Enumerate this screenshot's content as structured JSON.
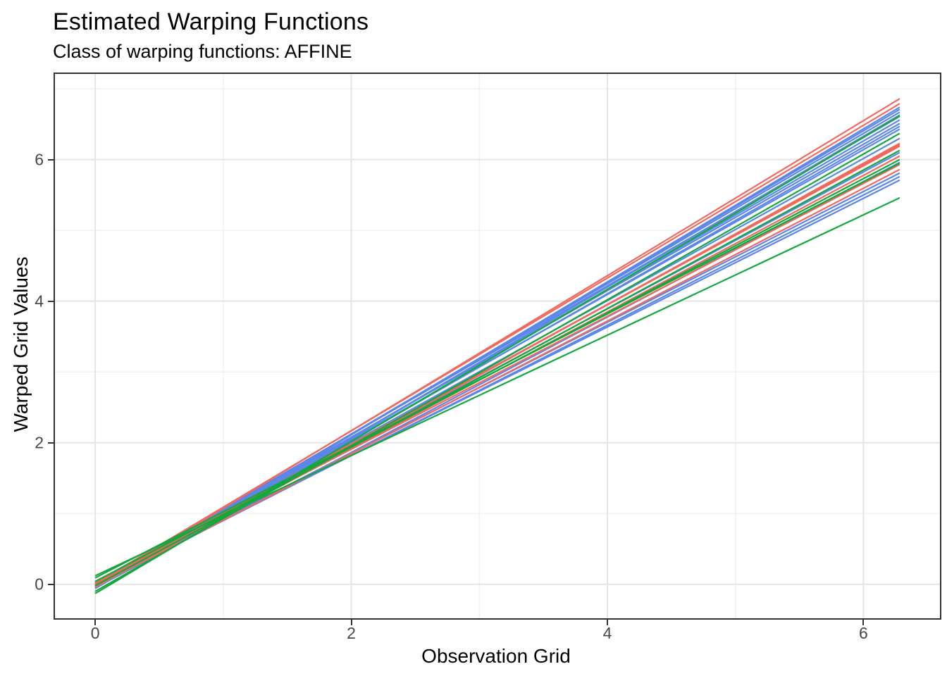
{
  "title": "Estimated Warping Functions",
  "subtitle": "Class of warping functions: AFFINE",
  "chart_data": {
    "type": "line",
    "title": "Estimated Warping Functions",
    "subtitle": "Class of warping functions: AFFINE",
    "xlabel": "Observation Grid",
    "ylabel": "Warped Grid Values",
    "legend": "none",
    "grid": "major+minor",
    "x_domain": [
      0,
      6.2832
    ],
    "xlim": [
      -0.3142,
      6.5974
    ],
    "ylim": [
      -0.48,
      7.21
    ],
    "x_ticks": [
      0,
      2,
      4,
      6
    ],
    "y_ticks": [
      0,
      2,
      4,
      6
    ],
    "x_minor_ticks": [
      1,
      3,
      5
    ],
    "y_minor_ticks": [
      1,
      3,
      5,
      7
    ],
    "colors": {
      "red": "#F2685E",
      "green": "#14A83C",
      "blue": "#5B87E9"
    },
    "line_width": 2.2,
    "series": [
      {
        "color": "blue",
        "y0": -0.05,
        "y1": 6.74
      },
      {
        "color": "blue",
        "y0": -0.02,
        "y1": 6.71
      },
      {
        "color": "blue",
        "y0": 0.0,
        "y1": 6.67
      },
      {
        "color": "blue",
        "y0": -0.06,
        "y1": 6.63
      },
      {
        "color": "blue",
        "y0": 0.02,
        "y1": 6.61
      },
      {
        "color": "blue",
        "y0": -0.03,
        "y1": 6.56
      },
      {
        "color": "blue",
        "y0": 0.01,
        "y1": 6.51
      },
      {
        "color": "blue",
        "y0": -0.04,
        "y1": 6.47
      },
      {
        "color": "blue",
        "y0": 0.0,
        "y1": 6.43
      },
      {
        "color": "blue",
        "y0": -0.01,
        "y1": 6.3
      },
      {
        "color": "blue",
        "y0": 0.02,
        "y1": 6.1
      },
      {
        "color": "blue",
        "y0": -0.05,
        "y1": 5.96
      },
      {
        "color": "blue",
        "y0": 0.01,
        "y1": 5.81
      },
      {
        "color": "blue",
        "y0": -0.02,
        "y1": 5.76
      },
      {
        "color": "blue",
        "y0": 0.0,
        "y1": 5.71
      },
      {
        "color": "red",
        "y0": -0.02,
        "y1": 6.86
      },
      {
        "color": "red",
        "y0": 0.01,
        "y1": 6.79
      },
      {
        "color": "red",
        "y0": -0.04,
        "y1": 6.23
      },
      {
        "color": "red",
        "y0": 0.0,
        "y1": 6.21
      },
      {
        "color": "red",
        "y0": 0.02,
        "y1": 6.19
      },
      {
        "color": "red",
        "y0": -0.01,
        "y1": 6.05
      },
      {
        "color": "red",
        "y0": 0.03,
        "y1": 5.93
      },
      {
        "color": "red",
        "y0": -0.03,
        "y1": 5.86
      },
      {
        "color": "green",
        "y0": -0.13,
        "y1": 6.62
      },
      {
        "color": "green",
        "y0": -0.1,
        "y1": 6.37
      },
      {
        "color": "green",
        "y0": -0.02,
        "y1": 6.13
      },
      {
        "color": "green",
        "y0": 0.04,
        "y1": 6.0
      },
      {
        "color": "green",
        "y0": 0.09,
        "y1": 5.95
      },
      {
        "color": "green",
        "y0": 0.12,
        "y1": 5.46
      }
    ],
    "style": {
      "panel_border": "#333333",
      "grid_major": "#E5E5E5",
      "grid_minor": "#F0F0F0",
      "tick_color": "#333333",
      "tick_label_color": "#474747",
      "text_color": "#000000",
      "background": "#ffffff"
    }
  }
}
